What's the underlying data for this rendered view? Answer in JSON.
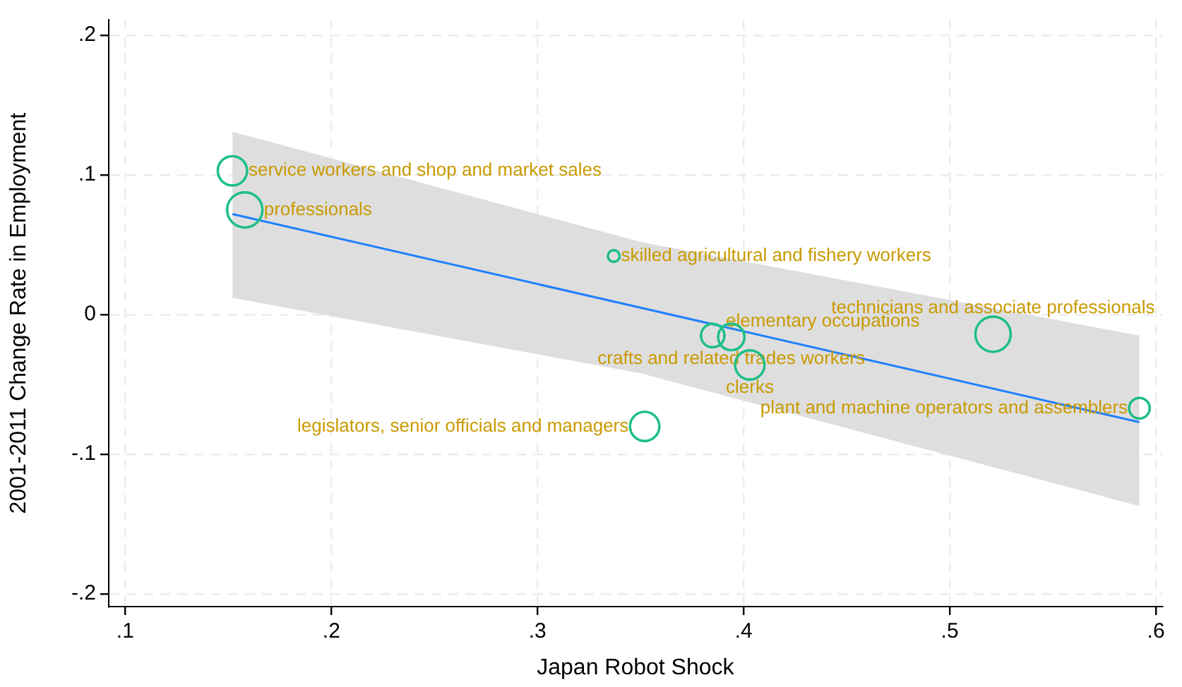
{
  "chart_data": {
    "type": "bubble",
    "xlabel": "Japan Robot Shock",
    "ylabel": "2001-2011 Change Rate in Employment",
    "xlim": [
      0.092,
      0.603
    ],
    "ylim": [
      -0.209,
      0.211
    ],
    "xticks": [
      {
        "value": 0.1,
        "label": ".1"
      },
      {
        "value": 0.2,
        "label": ".2"
      },
      {
        "value": 0.3,
        "label": ".3"
      },
      {
        "value": 0.4,
        "label": ".4"
      },
      {
        "value": 0.5,
        "label": ".5"
      },
      {
        "value": 0.6,
        "label": ".6"
      }
    ],
    "yticks": [
      {
        "value": -0.2,
        "label": "-.2"
      },
      {
        "value": -0.1,
        "label": "-.1"
      },
      0,
      {
        "value": 0.1,
        "label": ".1"
      },
      {
        "value": 0.2,
        "label": ".2"
      }
    ],
    "grid": true,
    "legend": false,
    "series": [
      {
        "type": "line",
        "color": "#1e7fff",
        "x": [
          0.152,
          0.35,
          0.592
        ],
        "values": [
          0.072,
          0.005,
          -0.077
        ],
        "lower": [
          0.012,
          -0.042,
          -0.137
        ],
        "upper": [
          0.131,
          0.052,
          -0.015
        ]
      },
      {
        "type": "bubble",
        "color": "#1fbf87",
        "x": [
          0.152,
          0.158,
          0.337,
          0.385,
          0.394,
          0.403,
          0.352,
          0.521,
          0.592
        ],
        "values": [
          0.103,
          0.075,
          0.042,
          -0.015,
          -0.016,
          -0.036,
          -0.08,
          -0.014,
          -0.067
        ],
        "sizes": [
          0.69,
          1,
          0.11,
          0.44,
          0.56,
          0.69,
          0.69,
          1,
          0.34
        ],
        "value_labels": [
          "service workers and shop and market sales",
          "professionals",
          "skilled agricultural and fishery workers",
          "elementary occupations",
          "crafts and related trades workers",
          "clerks",
          "legislators, senior officials and managers",
          "technicians and associate professionals",
          "plant and machine operators and assemblers"
        ]
      }
    ]
  }
}
